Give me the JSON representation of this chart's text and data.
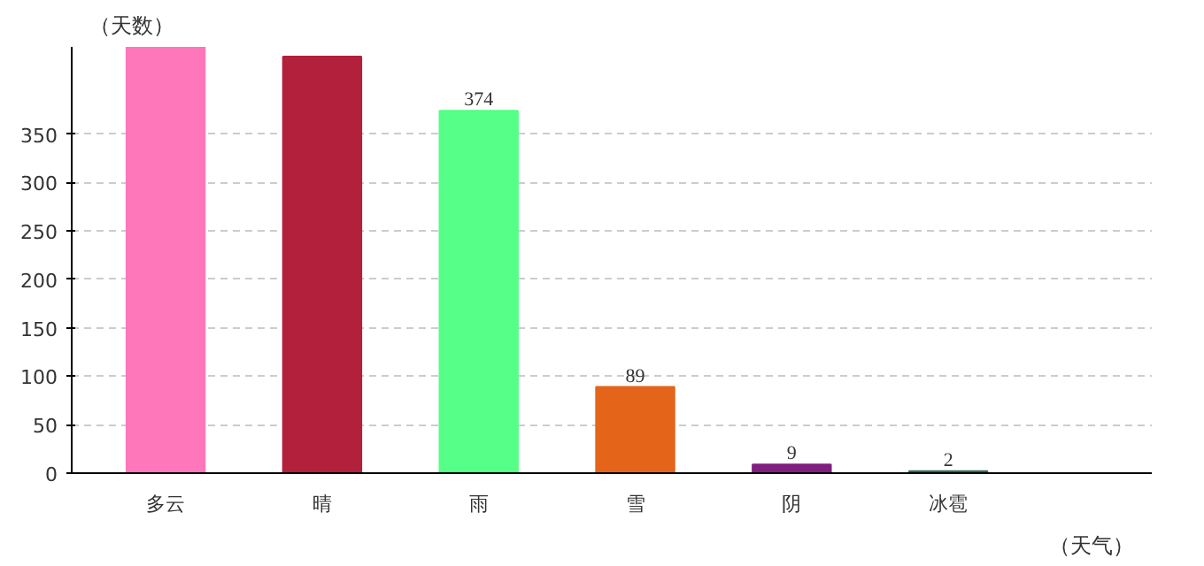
{
  "chart_data": {
    "type": "bar",
    "ylabel": "（天数）",
    "xlabel": "（天气）",
    "categories": [
      "多云",
      "晴",
      "雨",
      "雪",
      "阴",
      "冰雹"
    ],
    "values": [
      440,
      430,
      374,
      89,
      9,
      2
    ],
    "colors": [
      "#ff77bb",
      "#b3203c",
      "#55ff88",
      "#e4641a",
      "#7f1f7f",
      "#2e6b50"
    ],
    "value_labels": [
      null,
      null,
      "374",
      "89",
      "9",
      "2"
    ],
    "ylim": [
      0,
      440
    ],
    "yticks": [
      0,
      50,
      100,
      150,
      200,
      250,
      300,
      350
    ],
    "grid": "y"
  }
}
